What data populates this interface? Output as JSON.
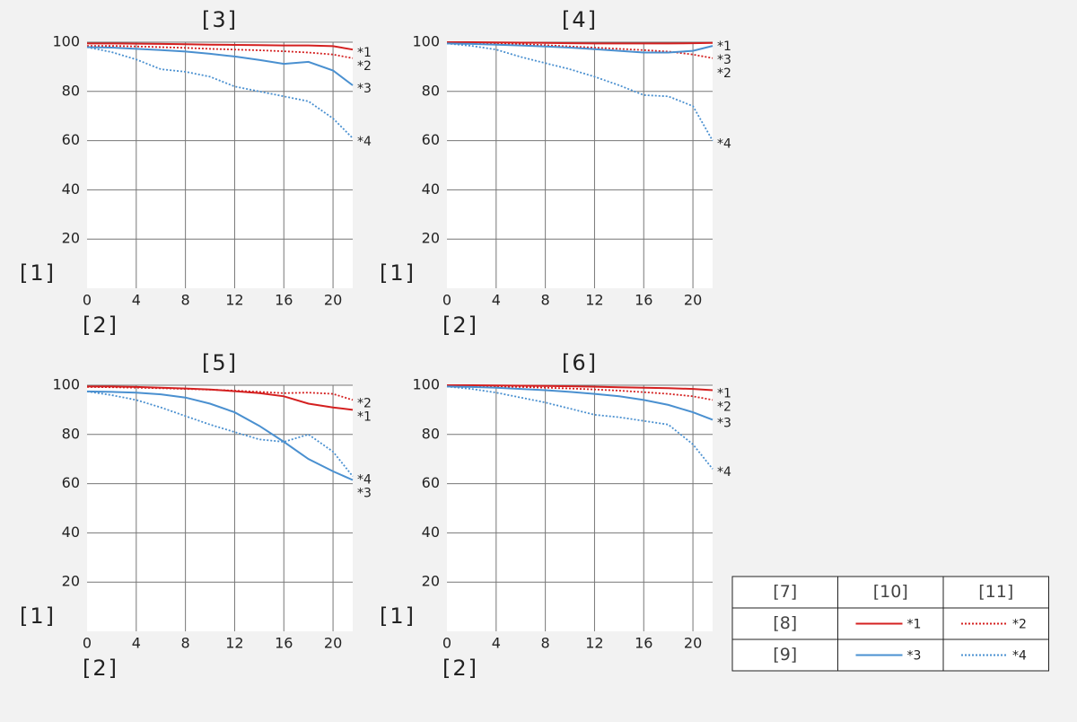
{
  "chart_data": [
    {
      "type": "line",
      "title": "[3]",
      "x_label": "[2]",
      "y_label": "[1]",
      "x": [
        0,
        2,
        4,
        6,
        8,
        10,
        12,
        14,
        16,
        18,
        20,
        21.6
      ],
      "xlim": [
        0,
        21.6
      ],
      "ylim": [
        0,
        100
      ],
      "xticks": [
        0,
        4,
        8,
        12,
        16,
        20
      ],
      "yticks": [
        20,
        40,
        60,
        80,
        100
      ],
      "grid": true,
      "series": [
        {
          "name": "*1",
          "color": "#d42020",
          "style": "solid",
          "values": [
            99.5,
            99.5,
            99.4,
            99.3,
            99.2,
            99,
            98.9,
            98.8,
            98.7,
            98.7,
            98.4,
            97
          ]
        },
        {
          "name": "*2",
          "color": "#d42020",
          "style": "dotted",
          "values": [
            98.5,
            98.5,
            98.3,
            98,
            97.7,
            97.3,
            97,
            96.7,
            96.3,
            95.8,
            95,
            93.5
          ]
        },
        {
          "name": "*3",
          "color": "#4a90d0",
          "style": "solid",
          "values": [
            98,
            97.8,
            97.3,
            96.8,
            96.2,
            95.3,
            94.2,
            92.8,
            91.2,
            92,
            88.5,
            82.5
          ]
        },
        {
          "name": "*4",
          "color": "#4a90d0",
          "style": "dotted",
          "values": [
            98,
            96,
            93,
            89,
            88,
            86,
            82,
            80,
            78,
            76,
            69,
            61
          ]
        }
      ]
    },
    {
      "type": "line",
      "title": "[4]",
      "x_label": "[2]",
      "y_label": "[1]",
      "x": [
        0,
        2,
        4,
        6,
        8,
        10,
        12,
        14,
        16,
        18,
        20,
        21.6
      ],
      "xlim": [
        0,
        21.6
      ],
      "ylim": [
        0,
        100
      ],
      "xticks": [
        0,
        4,
        8,
        12,
        16,
        20
      ],
      "yticks": [
        20,
        40,
        60,
        80,
        100
      ],
      "grid": true,
      "series": [
        {
          "name": "*1",
          "color": "#d42020",
          "style": "solid",
          "values": [
            100,
            100,
            99.9,
            99.8,
            99.7,
            99.6,
            99.5,
            99.5,
            99.5,
            99.5,
            99.6,
            99.7
          ]
        },
        {
          "name": "*2",
          "color": "#d42020",
          "style": "dotted",
          "values": [
            100,
            99.8,
            99.5,
            99.2,
            98.8,
            98.3,
            97.8,
            97.3,
            96.8,
            96.2,
            95,
            93.5
          ]
        },
        {
          "name": "*3",
          "color": "#4a90d0",
          "style": "solid",
          "values": [
            99.5,
            99.3,
            99,
            98.7,
            98.3,
            97.8,
            97.2,
            96.5,
            95.8,
            95.8,
            96.5,
            98.5
          ]
        },
        {
          "name": "*4",
          "color": "#4a90d0",
          "style": "dotted",
          "values": [
            99.5,
            98.5,
            97,
            94,
            91.5,
            89,
            86,
            82.5,
            78.5,
            78,
            74,
            60
          ]
        }
      ]
    },
    {
      "type": "line",
      "title": "[5]",
      "x_label": "[2]",
      "y_label": "[1]",
      "x": [
        0,
        2,
        4,
        6,
        8,
        10,
        12,
        14,
        16,
        18,
        20,
        21.6
      ],
      "xlim": [
        0,
        21.6
      ],
      "ylim": [
        0,
        100
      ],
      "xticks": [
        0,
        4,
        8,
        12,
        16,
        20
      ],
      "yticks": [
        20,
        40,
        60,
        80,
        100
      ],
      "grid": true,
      "series": [
        {
          "name": "*1",
          "color": "#d42020",
          "style": "solid",
          "values": [
            99.5,
            99.5,
            99.3,
            99,
            98.7,
            98.3,
            97.6,
            96.8,
            95.5,
            92.5,
            91,
            90
          ]
        },
        {
          "name": "*2",
          "color": "#d42020",
          "style": "dotted",
          "values": [
            99.3,
            99.2,
            99,
            98.8,
            98.5,
            98.2,
            97.8,
            97.3,
            96.8,
            97,
            96.5,
            94
          ]
        },
        {
          "name": "*3",
          "color": "#4a90d0",
          "style": "solid",
          "values": [
            97.5,
            97.3,
            97,
            96.3,
            95,
            92.5,
            89,
            83.5,
            77,
            70,
            65,
            61.5
          ]
        },
        {
          "name": "*4",
          "color": "#4a90d0",
          "style": "dotted",
          "values": [
            97.5,
            96,
            94,
            91,
            87.5,
            84,
            81,
            78,
            77,
            80,
            73,
            63
          ]
        }
      ]
    },
    {
      "type": "line",
      "title": "[6]",
      "x_label": "[2]",
      "y_label": "[1]",
      "x": [
        0,
        2,
        4,
        6,
        8,
        10,
        12,
        14,
        16,
        18,
        20,
        21.6
      ],
      "xlim": [
        0,
        21.6
      ],
      "ylim": [
        0,
        100
      ],
      "xticks": [
        0,
        4,
        8,
        12,
        16,
        20
      ],
      "yticks": [
        20,
        40,
        60,
        80,
        100
      ],
      "grid": true,
      "series": [
        {
          "name": "*1",
          "color": "#d42020",
          "style": "solid",
          "values": [
            100,
            100,
            99.9,
            99.8,
            99.7,
            99.6,
            99.4,
            99.2,
            99,
            98.8,
            98.5,
            98
          ]
        },
        {
          "name": "*2",
          "color": "#d42020",
          "style": "dotted",
          "values": [
            99.8,
            99.7,
            99.5,
            99.3,
            99,
            98.7,
            98.3,
            97.8,
            97.2,
            96.5,
            95.5,
            94
          ]
        },
        {
          "name": "*3",
          "color": "#4a90d0",
          "style": "solid",
          "values": [
            99.5,
            99.3,
            99,
            98.5,
            98,
            97.3,
            96.5,
            95.5,
            94,
            92,
            89,
            86
          ]
        },
        {
          "name": "*4",
          "color": "#4a90d0",
          "style": "dotted",
          "values": [
            99.5,
            98.5,
            97,
            95,
            93,
            90.5,
            88,
            87,
            85.5,
            84,
            76,
            66
          ]
        }
      ]
    }
  ],
  "legend_table": {
    "header": [
      "[7]",
      "[10]",
      "[11]"
    ],
    "row_labels": [
      "[8]",
      "[9]"
    ]
  }
}
